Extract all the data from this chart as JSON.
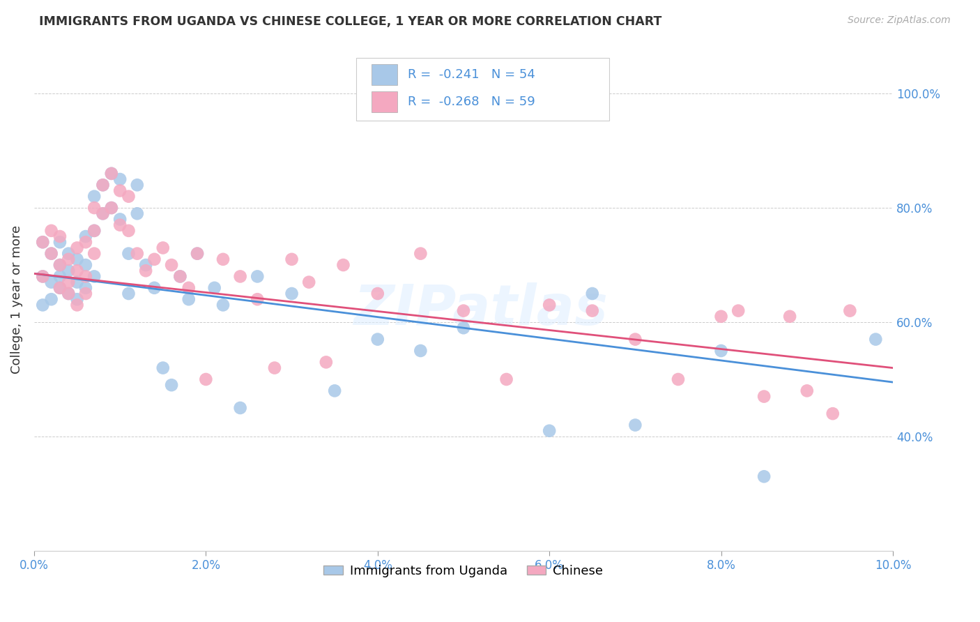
{
  "title": "IMMIGRANTS FROM UGANDA VS CHINESE COLLEGE, 1 YEAR OR MORE CORRELATION CHART",
  "source": "Source: ZipAtlas.com",
  "ylabel": "College, 1 year or more",
  "xlim": [
    0.0,
    0.1
  ],
  "ylim": [
    0.2,
    1.08
  ],
  "xtick_labels": [
    "0.0%",
    "2.0%",
    "4.0%",
    "6.0%",
    "8.0%",
    "10.0%"
  ],
  "xtick_vals": [
    0.0,
    0.02,
    0.04,
    0.06,
    0.08,
    0.1
  ],
  "ytick_labels": [
    "40.0%",
    "60.0%",
    "80.0%",
    "100.0%"
  ],
  "ytick_vals": [
    0.4,
    0.6,
    0.8,
    1.0
  ],
  "legend_label1": "Immigrants from Uganda",
  "legend_label2": "Chinese",
  "R1": "-0.241",
  "N1": "54",
  "R2": "-0.268",
  "N2": "59",
  "color1": "#a8c8e8",
  "color2": "#f4a8c0",
  "line_color1": "#4a90d9",
  "line_color2": "#e0507a",
  "watermark": "ZIPatlas",
  "scatter1_x": [
    0.001,
    0.001,
    0.001,
    0.002,
    0.002,
    0.002,
    0.003,
    0.003,
    0.003,
    0.003,
    0.004,
    0.004,
    0.004,
    0.005,
    0.005,
    0.005,
    0.006,
    0.006,
    0.006,
    0.007,
    0.007,
    0.007,
    0.008,
    0.008,
    0.009,
    0.009,
    0.01,
    0.01,
    0.011,
    0.011,
    0.012,
    0.012,
    0.013,
    0.014,
    0.015,
    0.016,
    0.017,
    0.018,
    0.019,
    0.021,
    0.022,
    0.024,
    0.026,
    0.03,
    0.035,
    0.04,
    0.045,
    0.05,
    0.06,
    0.065,
    0.07,
    0.08,
    0.085,
    0.098
  ],
  "scatter1_y": [
    0.68,
    0.63,
    0.74,
    0.67,
    0.72,
    0.64,
    0.7,
    0.66,
    0.74,
    0.68,
    0.72,
    0.65,
    0.69,
    0.71,
    0.64,
    0.67,
    0.75,
    0.7,
    0.66,
    0.82,
    0.76,
    0.68,
    0.84,
    0.79,
    0.86,
    0.8,
    0.85,
    0.78,
    0.72,
    0.65,
    0.84,
    0.79,
    0.7,
    0.66,
    0.52,
    0.49,
    0.68,
    0.64,
    0.72,
    0.66,
    0.63,
    0.45,
    0.68,
    0.65,
    0.48,
    0.57,
    0.55,
    0.59,
    0.41,
    0.65,
    0.42,
    0.55,
    0.33,
    0.57
  ],
  "scatter2_x": [
    0.001,
    0.001,
    0.002,
    0.002,
    0.003,
    0.003,
    0.003,
    0.004,
    0.004,
    0.004,
    0.005,
    0.005,
    0.005,
    0.006,
    0.006,
    0.006,
    0.007,
    0.007,
    0.007,
    0.008,
    0.008,
    0.009,
    0.009,
    0.01,
    0.01,
    0.011,
    0.011,
    0.012,
    0.013,
    0.014,
    0.015,
    0.016,
    0.017,
    0.018,
    0.019,
    0.02,
    0.022,
    0.024,
    0.026,
    0.028,
    0.03,
    0.032,
    0.034,
    0.036,
    0.04,
    0.045,
    0.05,
    0.055,
    0.06,
    0.065,
    0.07,
    0.075,
    0.08,
    0.082,
    0.085,
    0.088,
    0.09,
    0.093,
    0.095
  ],
  "scatter2_y": [
    0.68,
    0.74,
    0.72,
    0.76,
    0.7,
    0.66,
    0.75,
    0.65,
    0.71,
    0.67,
    0.69,
    0.63,
    0.73,
    0.68,
    0.74,
    0.65,
    0.8,
    0.76,
    0.72,
    0.84,
    0.79,
    0.86,
    0.8,
    0.83,
    0.77,
    0.82,
    0.76,
    0.72,
    0.69,
    0.71,
    0.73,
    0.7,
    0.68,
    0.66,
    0.72,
    0.5,
    0.71,
    0.68,
    0.64,
    0.52,
    0.71,
    0.67,
    0.53,
    0.7,
    0.65,
    0.72,
    0.62,
    0.5,
    0.63,
    0.62,
    0.57,
    0.5,
    0.61,
    0.62,
    0.47,
    0.61,
    0.48,
    0.44,
    0.62
  ],
  "line1_x0": 0.0,
  "line1_y0": 0.685,
  "line1_x1": 0.1,
  "line1_y1": 0.495,
  "line2_x0": 0.0,
  "line2_y0": 0.685,
  "line2_x1": 0.1,
  "line2_y1": 0.52
}
